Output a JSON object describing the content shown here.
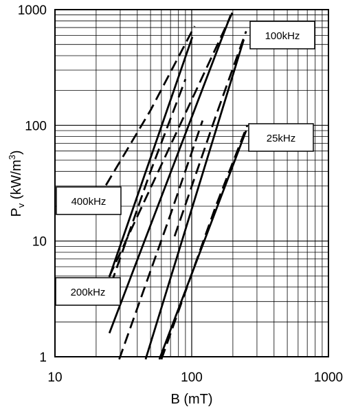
{
  "chart_data": {
    "type": "line",
    "x_scale": "log",
    "y_scale": "log",
    "xlim": [
      10,
      1000
    ],
    "ylim": [
      1,
      1000
    ],
    "grid": true,
    "xlabel": "B (mT)",
    "ylabel_main": "P",
    "ylabel_sub": "v",
    "ylabel_rest": " (kW/m",
    "ylabel_sup": "3",
    "ylabel_close": ")",
    "x_ticks": [
      {
        "value": 10,
        "label": "10"
      },
      {
        "value": 100,
        "label": "100"
      },
      {
        "value": 1000,
        "label": "1000"
      }
    ],
    "y_ticks": [
      {
        "value": 1,
        "label": "1"
      },
      {
        "value": 10,
        "label": "10"
      },
      {
        "value": 100,
        "label": "100"
      },
      {
        "value": 1000,
        "label": "1000"
      }
    ],
    "series": [
      {
        "name": "400kHz",
        "style": "solid",
        "points": [
          [
            25,
            4.9
          ],
          [
            101,
            580
          ]
        ]
      },
      {
        "name": "400kHz",
        "style": "dashed",
        "points": [
          [
            23.6,
            30.4
          ],
          [
            50,
            135
          ],
          [
            105,
            720
          ]
        ]
      },
      {
        "name": "400kHz",
        "style": "dashed",
        "points": [
          [
            25.8,
            4.3
          ],
          [
            50,
            40
          ],
          [
            90,
            250
          ]
        ]
      },
      {
        "name": "200kHz",
        "style": "solid",
        "points": [
          [
            25,
            1.6
          ],
          [
            193,
            900
          ]
        ]
      },
      {
        "name": "200kHz",
        "style": "dashed",
        "points": [
          [
            24.9,
            4.9
          ],
          [
            203,
            1000
          ]
        ]
      },
      {
        "name": "200kHz",
        "style": "dashed",
        "points": [
          [
            29.5,
            0.95
          ],
          [
            70,
            17
          ],
          [
            120,
            110
          ]
        ]
      },
      {
        "name": "100kHz",
        "style": "solid",
        "points": [
          [
            46,
            0.95
          ],
          [
            240,
            550
          ]
        ]
      },
      {
        "name": "100kHz",
        "style": "dashed",
        "points": [
          [
            75,
            11
          ],
          [
            150,
            120
          ],
          [
            250,
            650
          ]
        ]
      },
      {
        "name": "25kHz",
        "style": "solid",
        "points": [
          [
            58,
            0.95
          ],
          [
            250,
            90
          ]
        ]
      },
      {
        "name": "25kHz",
        "style": "dashed",
        "points": [
          [
            60,
            0.95
          ],
          [
            150,
            20
          ],
          [
            255,
            100
          ]
        ]
      }
    ],
    "annotations": [
      {
        "text": "400kHz"
      },
      {
        "text": "200kHz"
      },
      {
        "text": "100kHz"
      },
      {
        "text": "25kHz"
      }
    ]
  }
}
